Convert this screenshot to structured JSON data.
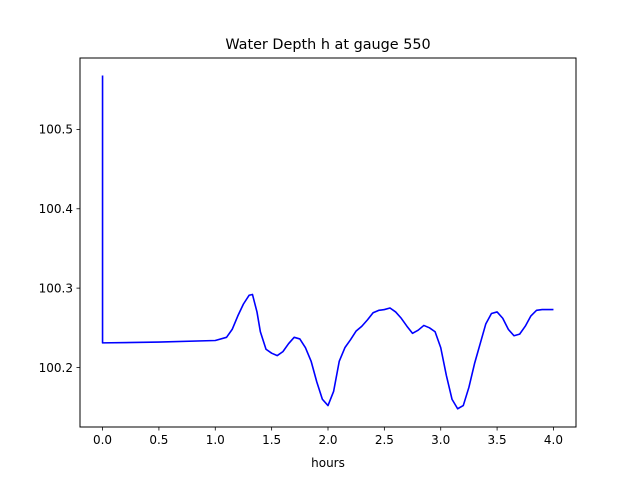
{
  "chart_data": {
    "type": "line",
    "title": "Water Depth h at gauge 550",
    "xlabel": "hours",
    "ylabel": "",
    "xlim": [
      -0.2,
      4.2
    ],
    "ylim": [
      100.125,
      100.59
    ],
    "grid": false,
    "legend": "none",
    "x_ticks": [
      0.0,
      0.5,
      1.0,
      1.5,
      2.0,
      2.5,
      3.0,
      3.5,
      4.0
    ],
    "x_tick_labels": [
      "0.0",
      "0.5",
      "1.0",
      "1.5",
      "2.0",
      "2.5",
      "3.0",
      "3.5",
      "4.0"
    ],
    "y_ticks": [
      100.2,
      100.3,
      100.4,
      100.5
    ],
    "y_tick_labels": [
      "100.2",
      "100.3",
      "100.4",
      "100.5"
    ],
    "series": [
      {
        "color": "#0000ff",
        "x": [
          0.0,
          0.0,
          0.5,
          1.0,
          1.1,
          1.15,
          1.2,
          1.25,
          1.3,
          1.33,
          1.37,
          1.4,
          1.45,
          1.5,
          1.55,
          1.6,
          1.65,
          1.7,
          1.75,
          1.8,
          1.85,
          1.9,
          1.95,
          2.0,
          2.05,
          2.1,
          2.15,
          2.2,
          2.25,
          2.3,
          2.35,
          2.4,
          2.45,
          2.5,
          2.55,
          2.6,
          2.65,
          2.7,
          2.75,
          2.8,
          2.85,
          2.9,
          2.95,
          3.0,
          3.05,
          3.1,
          3.15,
          3.2,
          3.25,
          3.3,
          3.35,
          3.4,
          3.45,
          3.5,
          3.55,
          3.6,
          3.65,
          3.7,
          3.75,
          3.8,
          3.85,
          3.9,
          3.95,
          4.0
        ],
        "y": [
          100.568,
          100.231,
          100.232,
          100.234,
          100.238,
          100.248,
          100.265,
          100.28,
          100.291,
          100.292,
          100.27,
          100.245,
          100.223,
          100.218,
          100.215,
          100.22,
          100.23,
          100.238,
          100.236,
          100.225,
          100.208,
          100.182,
          100.16,
          100.152,
          100.17,
          100.208,
          100.225,
          100.235,
          100.246,
          100.252,
          100.26,
          100.269,
          100.272,
          100.273,
          100.275,
          100.27,
          100.262,
          100.252,
          100.243,
          100.247,
          100.253,
          100.25,
          100.245,
          100.225,
          100.19,
          100.16,
          100.148,
          100.152,
          100.175,
          100.205,
          100.23,
          100.255,
          100.268,
          100.27,
          100.262,
          100.248,
          100.24,
          100.242,
          100.252,
          100.265,
          100.272,
          100.273,
          100.273,
          100.273
        ]
      }
    ]
  }
}
